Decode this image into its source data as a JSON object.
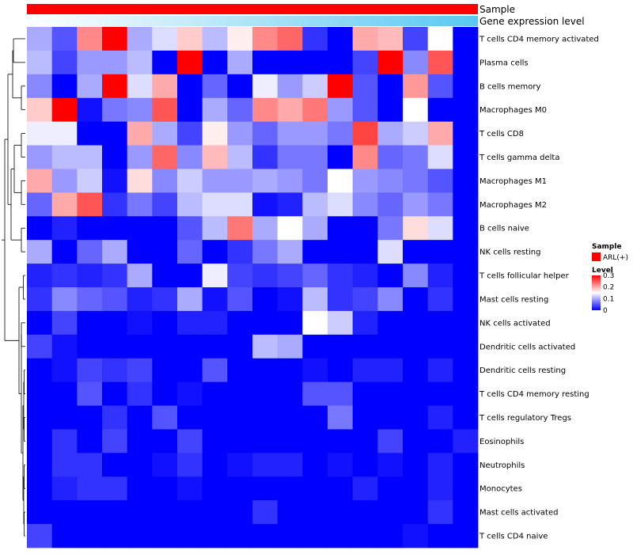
{
  "chart_data": {
    "type": "heatmap",
    "title": "",
    "annotations": [
      {
        "name": "Sample",
        "type": "solid",
        "color": "#ff0000"
      },
      {
        "name": "Gene expression level",
        "type": "gradient",
        "from": "#ffffff",
        "to": "#5ac8f0"
      }
    ],
    "rows": [
      "T cells CD4 memory activated",
      "Plasma cells",
      "B cells memory",
      "Macrophages M0",
      "T cells CD8",
      "T cells gamma delta",
      "Macrophages M1",
      "Macrophages M2",
      "B cells naive",
      "NK cells resting",
      "T cells follicular helper",
      "Mast cells resting",
      "NK cells activated",
      "Dendritic cells activated",
      "Dendritic cells resting",
      "T cells CD4 memory resting",
      "T cells regulatory  Tregs",
      "Eosinophils",
      "Neutrophils",
      "Monocytes",
      "Mast cells activated",
      "T cells CD4 naive"
    ],
    "n_columns": 18,
    "values": [
      [
        0.1,
        0.05,
        0.22,
        0.3,
        0.1,
        0.13,
        0.18,
        0.11,
        0.16,
        0.22,
        0.24,
        0.03,
        0.0,
        0.2,
        0.19,
        0.04,
        0.15,
        0.0
      ],
      [
        0.11,
        0.04,
        0.09,
        0.09,
        0.11,
        0.0,
        0.3,
        0.0,
        0.1,
        0.0,
        0.0,
        0.0,
        0.0,
        0.04,
        0.3,
        0.08,
        0.25,
        0.0
      ],
      [
        0.08,
        0.0,
        0.1,
        0.3,
        0.13,
        0.2,
        0.0,
        0.06,
        0.0,
        0.14,
        0.09,
        0.12,
        0.3,
        0.05,
        0.0,
        0.21,
        0.05,
        0.0
      ],
      [
        0.18,
        0.3,
        0.01,
        0.07,
        0.08,
        0.25,
        0.0,
        0.1,
        0.06,
        0.22,
        0.2,
        0.23,
        0.09,
        0.05,
        0.0,
        0.15,
        0.0,
        0.0
      ],
      [
        0.14,
        0.14,
        0.0,
        0.0,
        0.2,
        0.1,
        0.04,
        0.16,
        0.09,
        0.06,
        0.09,
        0.09,
        0.07,
        0.26,
        0.1,
        0.12,
        0.2,
        0.0
      ],
      [
        0.09,
        0.11,
        0.11,
        0.0,
        0.09,
        0.24,
        0.08,
        0.19,
        0.11,
        0.03,
        0.07,
        0.07,
        0.0,
        0.22,
        0.06,
        0.07,
        0.13,
        0.0
      ],
      [
        0.2,
        0.09,
        0.12,
        0.01,
        0.17,
        0.08,
        0.12,
        0.09,
        0.09,
        0.1,
        0.09,
        0.07,
        0.15,
        0.09,
        0.08,
        0.07,
        0.05,
        0.0
      ],
      [
        0.06,
        0.2,
        0.25,
        0.03,
        0.07,
        0.04,
        0.11,
        0.13,
        0.13,
        0.01,
        0.02,
        0.11,
        0.13,
        0.08,
        0.06,
        0.09,
        0.07,
        0.0
      ],
      [
        0.0,
        0.02,
        0.0,
        0.0,
        0.0,
        0.0,
        0.05,
        0.11,
        0.23,
        0.1,
        0.15,
        0.1,
        0.0,
        0.0,
        0.07,
        0.17,
        0.13,
        0.0
      ],
      [
        0.1,
        0.0,
        0.06,
        0.1,
        0.0,
        0.0,
        0.06,
        0.0,
        0.03,
        0.07,
        0.1,
        0.0,
        0.0,
        0.0,
        0.13,
        0.0,
        0.0,
        0.0
      ],
      [
        0.02,
        0.03,
        0.02,
        0.03,
        0.1,
        0.0,
        0.0,
        0.14,
        0.04,
        0.03,
        0.04,
        0.06,
        0.03,
        0.02,
        0.0,
        0.08,
        0.02,
        0.0
      ],
      [
        0.03,
        0.08,
        0.06,
        0.05,
        0.02,
        0.03,
        0.1,
        0.01,
        0.05,
        0.0,
        0.01,
        0.11,
        0.03,
        0.04,
        0.08,
        0.0,
        0.03,
        0.0
      ],
      [
        0.0,
        0.04,
        0.0,
        0.0,
        0.01,
        0.0,
        0.02,
        0.02,
        0.0,
        0.0,
        0.0,
        0.15,
        0.12,
        0.02,
        0.0,
        0.0,
        0.0,
        0.0
      ],
      [
        0.04,
        0.01,
        0.0,
        0.0,
        0.0,
        0.0,
        0.0,
        0.0,
        0.0,
        0.11,
        0.1,
        0.0,
        0.0,
        0.0,
        0.0,
        0.0,
        0.0,
        0.0
      ],
      [
        0.0,
        0.01,
        0.04,
        0.03,
        0.04,
        0.0,
        0.0,
        0.05,
        0.0,
        0.0,
        0.0,
        0.01,
        0.0,
        0.02,
        0.02,
        0.0,
        0.02,
        0.0
      ],
      [
        0.0,
        0.0,
        0.05,
        0.0,
        0.03,
        0.0,
        0.01,
        0.0,
        0.0,
        0.0,
        0.0,
        0.05,
        0.05,
        0.0,
        0.0,
        0.0,
        0.0,
        0.0
      ],
      [
        0.0,
        0.0,
        0.0,
        0.03,
        0.0,
        0.05,
        0.0,
        0.0,
        0.0,
        0.0,
        0.0,
        0.0,
        0.07,
        0.0,
        0.0,
        0.0,
        0.02,
        0.0
      ],
      [
        0.0,
        0.03,
        0.0,
        0.04,
        0.0,
        0.0,
        0.04,
        0.0,
        0.0,
        0.0,
        0.0,
        0.0,
        0.0,
        0.0,
        0.04,
        0.0,
        0.0,
        0.02
      ],
      [
        0.0,
        0.03,
        0.03,
        0.0,
        0.0,
        0.01,
        0.03,
        0.0,
        0.01,
        0.02,
        0.02,
        0.0,
        0.01,
        0.0,
        0.01,
        0.0,
        0.02,
        0.0
      ],
      [
        0.0,
        0.02,
        0.03,
        0.03,
        0.0,
        0.0,
        0.01,
        0.0,
        0.0,
        0.0,
        0.0,
        0.0,
        0.0,
        0.02,
        0.0,
        0.0,
        0.02,
        0.0
      ],
      [
        0.0,
        0.0,
        0.0,
        0.0,
        0.0,
        0.0,
        0.0,
        0.0,
        0.0,
        0.03,
        0.0,
        0.0,
        0.0,
        0.0,
        0.0,
        0.0,
        0.03,
        0.0
      ],
      [
        0.04,
        0.0,
        0.0,
        0.0,
        0.0,
        0.0,
        0.0,
        0.0,
        0.0,
        0.0,
        0.0,
        0.0,
        0.0,
        0.0,
        0.0,
        0.01,
        0.0,
        0.0
      ]
    ],
    "color_scale": {
      "min": 0,
      "mid": 0.15,
      "max": 0.3,
      "low_color": "#0000ff",
      "mid_color": "#ffffff",
      "high_color": "#ff0000"
    },
    "legend": {
      "position": "right",
      "sample_title": "Sample",
      "sample_entry": "ARL(+)",
      "sample_color": "#ff0000",
      "level_title": "Level",
      "level_ticks": [
        "0.3",
        "0.2",
        "0.1",
        "0"
      ],
      "level_tick_values": [
        0.3,
        0.2,
        0.1,
        0
      ]
    },
    "dendrogram": {
      "side": "left",
      "merges": [
        [
          0,
          1,
          3
        ],
        [
          2,
          3,
          1
        ],
        [
          4,
          5,
          1
        ],
        [
          6,
          7,
          1
        ],
        [
          8,
          9,
          1
        ],
        [
          10,
          11,
          0.5
        ],
        [
          12,
          13,
          1
        ],
        [
          14,
          15,
          0.3
        ],
        [
          16,
          17,
          0.3
        ],
        [
          18,
          19,
          0.3
        ],
        [
          20,
          21,
          0.3
        ]
      ]
    }
  }
}
